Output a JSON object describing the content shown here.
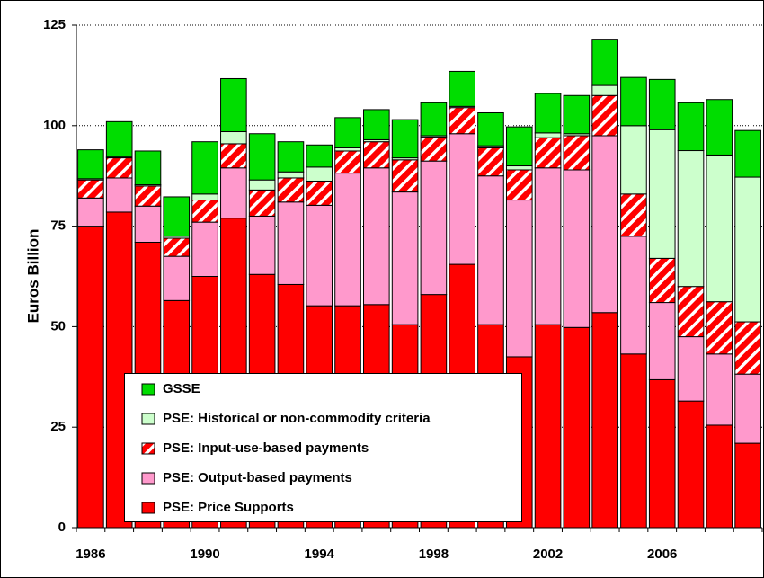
{
  "chart_data": {
    "type": "stacked_bar",
    "y_label": "Euros Billion",
    "categories": [
      "1986",
      null,
      null,
      null,
      "1990",
      null,
      null,
      null,
      "1994",
      null,
      null,
      null,
      "1998",
      null,
      null,
      null,
      "2002",
      null,
      null,
      null,
      "2006",
      null,
      null,
      null
    ],
    "series": [
      {
        "name": "PSE: Price Supports",
        "color": "#ff0000",
        "hatch": false,
        "values": [
          75,
          78.5,
          71,
          56.5,
          62.5,
          77,
          63,
          60.5,
          55.2,
          55.2,
          55.5,
          50.5,
          58,
          65.5,
          50.5,
          42.5,
          50.5,
          49.8,
          53.5,
          43.2,
          36.8,
          31.5,
          25.5,
          21
        ]
      },
      {
        "name": "PSE: Output-based payments",
        "color": "#ff99cc",
        "hatch": false,
        "values": [
          7,
          8.5,
          9,
          11,
          13.5,
          12.5,
          14.5,
          20.5,
          25,
          33,
          34,
          33,
          33.2,
          32.5,
          37,
          39,
          39,
          39.2,
          44,
          29.3,
          19.2,
          16,
          17.7,
          17.2
        ]
      },
      {
        "name": "PSE: Input-use-based payments",
        "color": "#ff0000",
        "hatch": true,
        "values": [
          4.5,
          5,
          5,
          4.5,
          5.5,
          6,
          6.5,
          6,
          6,
          5.5,
          6.5,
          8,
          6,
          6.5,
          7,
          7.5,
          7.5,
          8.5,
          10,
          10.5,
          11,
          12.5,
          13,
          13
        ]
      },
      {
        "name": "PSE: Historical or non-commodity criteria",
        "color": "#ccffcc",
        "hatch": false,
        "values": [
          0.3,
          0.2,
          0.3,
          0.5,
          1.5,
          3,
          2.5,
          1.5,
          3.5,
          0.8,
          0.5,
          0.5,
          0.3,
          0.3,
          0.5,
          1,
          1.2,
          0.5,
          2.5,
          17,
          32,
          33.8,
          36.5,
          36
        ]
      },
      {
        "name": "GSSE",
        "color": "#00dd00",
        "hatch": false,
        "values": [
          7.2,
          8.8,
          8.4,
          9.8,
          13,
          13.2,
          11.5,
          7.5,
          5.5,
          7.5,
          7.5,
          9.5,
          8.2,
          8.7,
          8.2,
          9.7,
          9.8,
          9.5,
          11.5,
          12,
          12.5,
          11.9,
          13.8,
          11.6
        ]
      }
    ],
    "ylim": [
      0,
      125
    ],
    "yticks": [
      0,
      25,
      50,
      75,
      100,
      125
    ],
    "grid": true,
    "legend": "bottom-left"
  }
}
